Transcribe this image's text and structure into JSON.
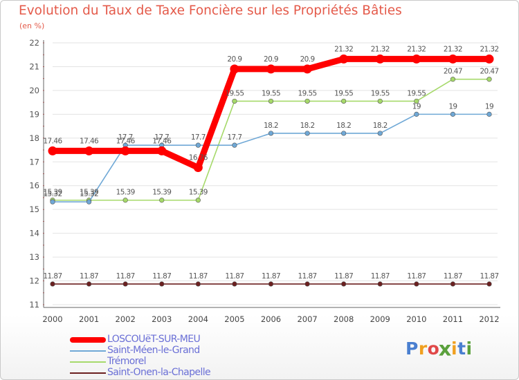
{
  "chart_data": {
    "type": "line",
    "title": "Evolution du Taux de Taxe Foncière sur les Propriétés Bâties",
    "ylabel": "(en %)",
    "xlabel": "",
    "ylim": [
      11,
      22
    ],
    "yticks": [
      "11",
      "12",
      "13",
      "14",
      "15",
      "16",
      "17",
      "18",
      "19",
      "20",
      "21",
      "22"
    ],
    "categories": [
      "2000",
      "2001",
      "2002",
      "2003",
      "2004",
      "2005",
      "2006",
      "2007",
      "2008",
      "2009",
      "2010",
      "2011",
      "2012"
    ],
    "series": [
      {
        "name": "Saint-Onen-la-Chapelle",
        "color": "#6b1f1f",
        "values": [
          11.87,
          11.87,
          11.87,
          11.87,
          11.87,
          11.87,
          11.87,
          11.87,
          11.87,
          11.87,
          11.87,
          11.87,
          11.87
        ],
        "labels": [
          "11.87",
          "11.87",
          "11.87",
          "11.87",
          "11.87",
          "11.87",
          "11.87",
          "11.87",
          "11.87",
          "11.87",
          "11.87",
          "11.87",
          "11.87"
        ]
      },
      {
        "name": "Trémorel",
        "color": "#a6d96a",
        "values": [
          15.39,
          15.39,
          15.39,
          15.39,
          15.39,
          19.55,
          19.55,
          19.55,
          19.55,
          19.55,
          19.55,
          20.47,
          20.47
        ],
        "labels": [
          "15.39",
          "15.39",
          "15.39",
          "15.39",
          "15.39",
          "19.55",
          "19.55",
          "19.55",
          "19.55",
          "19.55",
          "19.55",
          "20.47",
          "20.47"
        ]
      },
      {
        "name": "Saint-Méen-le-Grand",
        "color": "#6fa8d6",
        "values": [
          15.32,
          15.32,
          17.7,
          17.7,
          17.7,
          17.7,
          18.2,
          18.2,
          18.2,
          18.2,
          19,
          19,
          19
        ],
        "labels": [
          "15.32",
          "15.32",
          "17.7",
          "17.7",
          "17.7",
          "17.7",
          "18.2",
          "18.2",
          "18.2",
          "18.2",
          "19",
          "19",
          "19"
        ]
      },
      {
        "name": "LOSCOUëT-SUR-MEU",
        "color": "#ff0000",
        "values": [
          17.46,
          17.46,
          17.46,
          17.46,
          16.76,
          20.9,
          20.9,
          20.9,
          21.32,
          21.32,
          21.32,
          21.32,
          21.32
        ],
        "labels": [
          "17.46",
          "17.46",
          "17.46",
          "17.46",
          "16.76",
          "20.9",
          "20.9",
          "20.9",
          "21.32",
          "21.32",
          "21.32",
          "21.32",
          "21.32"
        ]
      }
    ],
    "legend": [
      {
        "name": "LOSCOUëT-SUR-MEU",
        "color": "#ff0000"
      },
      {
        "name": "Saint-Méen-le-Grand",
        "color": "#6fa8d6"
      },
      {
        "name": "Trémorel",
        "color": "#a6d96a"
      },
      {
        "name": "Saint-Onen-la-Chapelle",
        "color": "#6b1f1f"
      }
    ]
  },
  "logo": {
    "text": "Proxiti",
    "letters": [
      "P",
      "r",
      "o",
      "x",
      "i",
      "t",
      "i"
    ],
    "colors": [
      "#4a7fd0",
      "#f0a020",
      "#e04848",
      "#5aa03c",
      "#f0a020",
      "#4a7fd0",
      "#5aa03c"
    ]
  }
}
